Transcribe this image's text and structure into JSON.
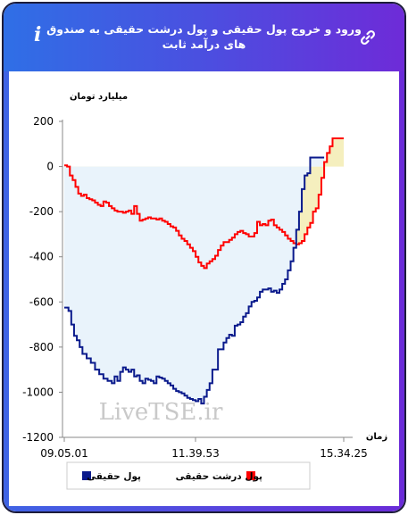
{
  "header": {
    "title": "ورود و خروج پول حقیقی و پول درشت حقیقی به صندوق های درآمد ثابت",
    "info_icon": "i",
    "link_icon": "link-icon"
  },
  "watermark": "LiveTSE.ir",
  "colors": {
    "real_money": "#0a1a8c",
    "big_real_money": "#ff0000",
    "real_fill": "#e9f3fb",
    "big_fill": "#f5efbe"
  },
  "chart_data": {
    "type": "line",
    "title": "ورود و خروج پول حقیقی و پول درشت حقیقی به صندوق های درآمد ثابت",
    "ylabel": "میلیارد تومان",
    "xlabel": "زمان",
    "ylim": [
      -1200,
      200
    ],
    "yticks": [
      "200",
      "0",
      "-200",
      "-400",
      "-600",
      "-800",
      "-1000",
      "-1200"
    ],
    "xticks": [
      "09.05.01",
      "11.39.53",
      "15.34.25"
    ],
    "legend": "bottom",
    "grid": false,
    "x_steps": 150,
    "series": [
      {
        "name": "پول حقیقی",
        "color": "#0a1a8c",
        "points": [
          [
            0,
            -625
          ],
          [
            3,
            -640
          ],
          [
            5,
            -700
          ],
          [
            7,
            -750
          ],
          [
            9,
            -770
          ],
          [
            11,
            -800
          ],
          [
            13,
            -830
          ],
          [
            16,
            -850
          ],
          [
            19,
            -870
          ],
          [
            22,
            -900
          ],
          [
            25,
            -920
          ],
          [
            28,
            -940
          ],
          [
            31,
            -950
          ],
          [
            34,
            -960
          ],
          [
            36,
            -930
          ],
          [
            38,
            -950
          ],
          [
            40,
            -910
          ],
          [
            42,
            -890
          ],
          [
            44,
            -900
          ],
          [
            46,
            -910
          ],
          [
            48,
            -900
          ],
          [
            50,
            -930
          ],
          [
            52,
            -925
          ],
          [
            54,
            -950
          ],
          [
            56,
            -960
          ],
          [
            58,
            -940
          ],
          [
            60,
            -945
          ],
          [
            62,
            -950
          ],
          [
            64,
            -960
          ],
          [
            66,
            -930
          ],
          [
            68,
            -935
          ],
          [
            70,
            -940
          ],
          [
            72,
            -950
          ],
          [
            74,
            -960
          ],
          [
            76,
            -970
          ],
          [
            78,
            -985
          ],
          [
            80,
            -995
          ],
          [
            82,
            -1000
          ],
          [
            84,
            -1005
          ],
          [
            86,
            -1015
          ],
          [
            88,
            -1025
          ],
          [
            90,
            -1030
          ],
          [
            92,
            -1035
          ],
          [
            94,
            -1040
          ],
          [
            96,
            -1030
          ],
          [
            98,
            -1050
          ],
          [
            100,
            -1020
          ],
          [
            102,
            -990
          ],
          [
            104,
            -960
          ],
          [
            106,
            -900
          ],
          [
            108,
            -900
          ],
          [
            110,
            -810
          ],
          [
            112,
            -810
          ],
          [
            114,
            -780
          ],
          [
            116,
            -760
          ],
          [
            118,
            -745
          ],
          [
            120,
            -750
          ],
          [
            122,
            -705
          ],
          [
            124,
            -700
          ],
          [
            126,
            -690
          ],
          [
            128,
            -665
          ],
          [
            130,
            -650
          ],
          [
            132,
            -620
          ],
          [
            134,
            -600
          ],
          [
            136,
            -595
          ],
          [
            138,
            -580
          ],
          [
            140,
            -555
          ],
          [
            142,
            -545
          ],
          [
            144,
            -545
          ],
          [
            146,
            -540
          ],
          [
            148,
            -555
          ],
          [
            150,
            -550
          ],
          [
            152,
            -560
          ],
          [
            154,
            -545
          ],
          [
            156,
            -520
          ],
          [
            158,
            -500
          ],
          [
            160,
            -460
          ],
          [
            162,
            -420
          ],
          [
            164,
            -360
          ],
          [
            166,
            -280
          ],
          [
            168,
            -200
          ],
          [
            170,
            -100
          ],
          [
            172,
            -40
          ],
          [
            174,
            -30
          ],
          [
            176,
            40
          ],
          [
            178,
            40
          ],
          [
            180,
            40
          ],
          [
            182,
            40
          ],
          [
            184,
            40
          ],
          [
            186,
            40
          ]
        ]
      },
      {
        "name": "پول درشت حقیقی",
        "color": "#ff0000",
        "points": [
          [
            0,
            5
          ],
          [
            2,
            0
          ],
          [
            4,
            -40
          ],
          [
            6,
            -60
          ],
          [
            8,
            -90
          ],
          [
            10,
            -120
          ],
          [
            12,
            -130
          ],
          [
            14,
            -125
          ],
          [
            16,
            -140
          ],
          [
            18,
            -145
          ],
          [
            20,
            -150
          ],
          [
            22,
            -160
          ],
          [
            24,
            -170
          ],
          [
            26,
            -175
          ],
          [
            28,
            -155
          ],
          [
            30,
            -160
          ],
          [
            32,
            -175
          ],
          [
            34,
            -185
          ],
          [
            36,
            -195
          ],
          [
            38,
            -200
          ],
          [
            40,
            -200
          ],
          [
            42,
            -205
          ],
          [
            44,
            -200
          ],
          [
            46,
            -195
          ],
          [
            48,
            -210
          ],
          [
            50,
            -175
          ],
          [
            52,
            -210
          ],
          [
            54,
            -240
          ],
          [
            56,
            -235
          ],
          [
            58,
            -230
          ],
          [
            60,
            -225
          ],
          [
            62,
            -230
          ],
          [
            64,
            -230
          ],
          [
            66,
            -235
          ],
          [
            68,
            -230
          ],
          [
            70,
            -240
          ],
          [
            72,
            -245
          ],
          [
            74,
            -255
          ],
          [
            76,
            -265
          ],
          [
            78,
            -270
          ],
          [
            80,
            -285
          ],
          [
            82,
            -305
          ],
          [
            84,
            -320
          ],
          [
            86,
            -330
          ],
          [
            88,
            -345
          ],
          [
            90,
            -360
          ],
          [
            92,
            -375
          ],
          [
            94,
            -400
          ],
          [
            96,
            -425
          ],
          [
            98,
            -440
          ],
          [
            100,
            -450
          ],
          [
            102,
            -430
          ],
          [
            104,
            -420
          ],
          [
            106,
            -410
          ],
          [
            108,
            -395
          ],
          [
            110,
            -370
          ],
          [
            112,
            -350
          ],
          [
            114,
            -335
          ],
          [
            116,
            -335
          ],
          [
            118,
            -325
          ],
          [
            120,
            -315
          ],
          [
            122,
            -300
          ],
          [
            124,
            -290
          ],
          [
            126,
            -285
          ],
          [
            128,
            -295
          ],
          [
            130,
            -300
          ],
          [
            132,
            -310
          ],
          [
            134,
            -310
          ],
          [
            136,
            -295
          ],
          [
            138,
            -245
          ],
          [
            140,
            -260
          ],
          [
            142,
            -255
          ],
          [
            144,
            -260
          ],
          [
            146,
            -240
          ],
          [
            148,
            -235
          ],
          [
            150,
            -260
          ],
          [
            152,
            -270
          ],
          [
            154,
            -280
          ],
          [
            156,
            -290
          ],
          [
            158,
            -305
          ],
          [
            160,
            -320
          ],
          [
            162,
            -330
          ],
          [
            164,
            -340
          ],
          [
            166,
            -345
          ],
          [
            168,
            -340
          ],
          [
            170,
            -330
          ],
          [
            172,
            -300
          ],
          [
            174,
            -270
          ],
          [
            176,
            -250
          ],
          [
            178,
            -200
          ],
          [
            180,
            -185
          ],
          [
            182,
            -125
          ],
          [
            184,
            -50
          ],
          [
            186,
            20
          ],
          [
            188,
            60
          ],
          [
            190,
            90
          ],
          [
            192,
            125
          ],
          [
            194,
            125
          ],
          [
            196,
            125
          ],
          [
            198,
            125
          ],
          [
            200,
            125
          ]
        ]
      }
    ]
  }
}
